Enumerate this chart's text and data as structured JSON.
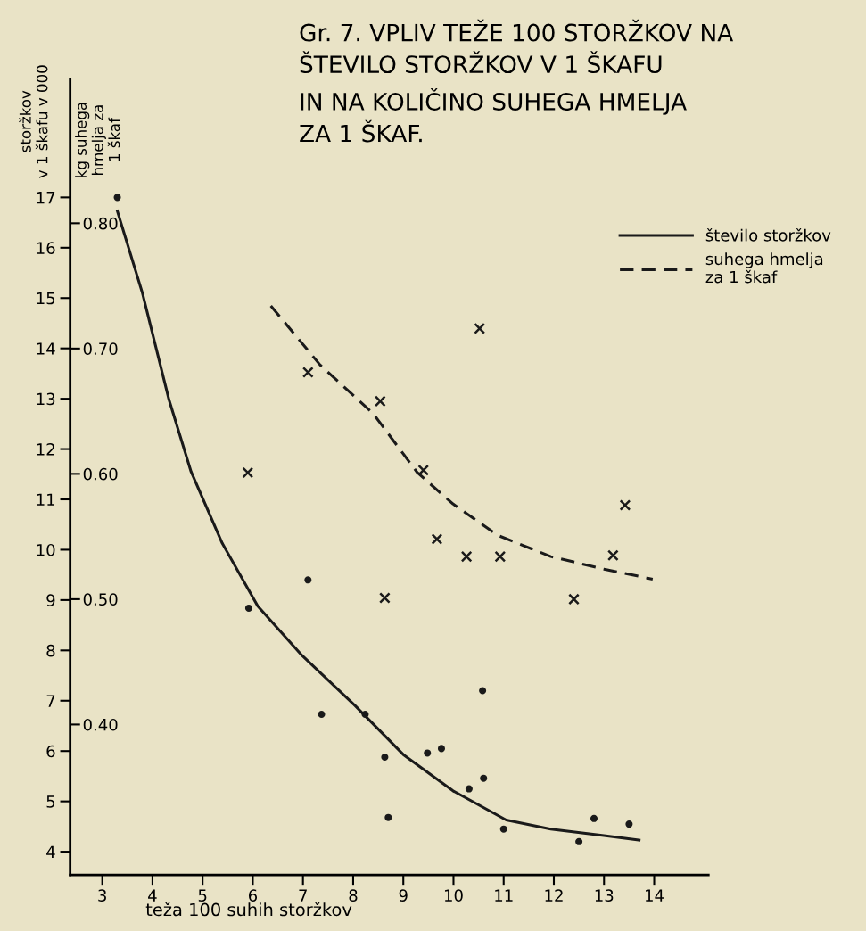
{
  "chart_data": {
    "type": "scatter",
    "title": "Gr. 7. VPLIV TEŽE 100 STORŽKOV NA\nŠTEVILO STORŽKOV V 1 ŠKAFU\nIN NA KOLIČINO SUHEGA HMELJA\nZA 1 ŠKAF.",
    "xlabel": "teža 100 suhih storžkov",
    "ylabel": "storžkov\nv 1 škafu v 000",
    "y2label": "kg suhega\nhmelja za\n1 škaf",
    "xlim": [
      2.36,
      15.08
    ],
    "ylim": [
      3.54,
      19.35
    ],
    "y2lim": [
      0.28,
      0.915
    ],
    "xticks": [
      3,
      4,
      5,
      6,
      7,
      8,
      9,
      10,
      11,
      12,
      13,
      14
    ],
    "yticks": [
      4,
      5,
      6,
      7,
      8,
      9,
      10,
      11,
      12,
      13,
      14,
      15,
      16,
      17
    ],
    "y2ticks": [
      {
        "value": 0.4,
        "label": "0.40"
      },
      {
        "value": 0.5,
        "label": "0.50"
      },
      {
        "value": 0.6,
        "label": "0.60"
      },
      {
        "value": 0.7,
        "label": "0.70"
      },
      {
        "value": 0.8,
        "label": "0.80"
      }
    ],
    "grid": false,
    "legend": "top right",
    "series": [
      {
        "name": "število storžkov",
        "type": "line",
        "line_style": "solid",
        "color": "#1a1a1a",
        "x": [
          3.3,
          3.8,
          4.33,
          4.77,
          5.39,
          6.1,
          6.98,
          8.04,
          9.0,
          9.99,
          11.05,
          11.94,
          13.0,
          13.7
        ],
        "values": [
          16.73,
          15.1,
          12.98,
          11.55,
          10.13,
          8.88,
          7.9,
          6.9,
          5.93,
          5.21,
          4.63,
          4.45,
          4.32,
          4.23
        ]
      },
      {
        "marker": "circle",
        "color": "#1a1a1a",
        "x": [
          3.3,
          5.92,
          7.1,
          7.37,
          8.24,
          8.63,
          8.7,
          9.48,
          9.76,
          10.31,
          10.58,
          10.6,
          11.0,
          12.5,
          12.8,
          13.5
        ],
        "values": [
          17.0,
          8.84,
          9.4,
          6.73,
          6.73,
          5.88,
          4.68,
          5.96,
          6.05,
          5.25,
          7.2,
          5.46,
          4.45,
          4.2,
          4.66,
          4.55
        ]
      },
      {
        "name": "suhega hmelja\nza 1 škaf",
        "type": "line",
        "axis": "y2",
        "line_style": "dashed",
        "color": "#1a1a1a",
        "x": [
          6.36,
          7.34,
          8.4,
          9.28,
          9.99,
          10.88,
          11.94,
          13.0,
          13.97
        ],
        "values": [
          0.734,
          0.687,
          0.648,
          0.601,
          0.576,
          0.551,
          0.534,
          0.524,
          0.516
        ]
      },
      {
        "axis": "y2",
        "marker": "cross",
        "color": "#1a1a1a",
        "x": [
          5.9,
          7.1,
          8.54,
          8.63,
          9.4,
          9.67,
          10.26,
          10.52,
          10.93,
          12.4,
          13.18,
          13.42
        ],
        "values": [
          0.601,
          0.681,
          0.658,
          0.501,
          0.603,
          0.548,
          0.534,
          0.716,
          0.534,
          0.5,
          0.535,
          0.575
        ]
      }
    ]
  }
}
